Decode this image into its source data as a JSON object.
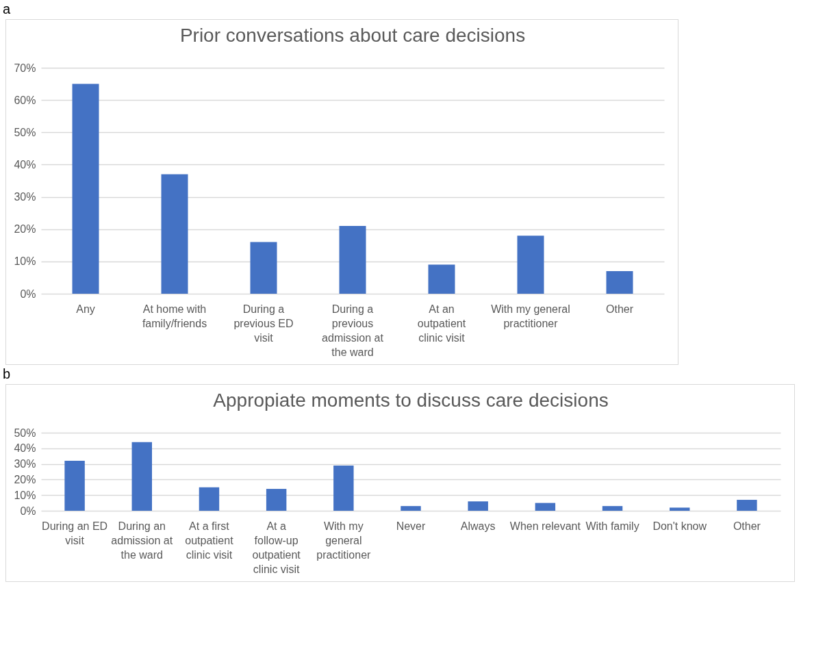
{
  "chart_data": [
    {
      "type": "bar",
      "title": "Prior conversations about care decisions",
      "annotations": [
        "a"
      ],
      "categories": [
        "Any",
        "At home with family/friends",
        "During a previous ED visit",
        "During a previous admission at the ward",
        "At an outpatient clinic visit",
        "With my general practitioner",
        "Other"
      ],
      "values": [
        65,
        37,
        16,
        21,
        9,
        18,
        7
      ],
      "color": "#4472c4",
      "ylim": [
        0,
        70
      ],
      "yticks": [
        {
          "value": 0,
          "label": "0%"
        },
        {
          "value": 10,
          "label": "10%"
        },
        {
          "value": 20,
          "label": "20%"
        },
        {
          "value": 30,
          "label": "30%"
        },
        {
          "value": 40,
          "label": "40%"
        },
        {
          "value": 50,
          "label": "50%"
        },
        {
          "value": 60,
          "label": "60%"
        },
        {
          "value": 70,
          "label": "70%"
        }
      ],
      "grid": "y"
    },
    {
      "type": "bar",
      "title": "Appropiate moments to discuss care decisions",
      "annotations": [
        "b"
      ],
      "categories": [
        "During an ED visit",
        "During an admission at the ward",
        "At a first outpatient clinic visit",
        "At a follow-up outpatient clinic visit",
        "With my general practitioner",
        "Never",
        "Always",
        "When relevant",
        "With family",
        "Don't know",
        "Other"
      ],
      "values": [
        32,
        44,
        15,
        14,
        29,
        3,
        6,
        5,
        3,
        2,
        7
      ],
      "color": "#4472c4",
      "ylim": [
        0,
        50
      ],
      "yticks": [
        {
          "value": 0,
          "label": "0%"
        },
        {
          "value": 10,
          "label": "10%"
        },
        {
          "value": 20,
          "label": "20%"
        },
        {
          "value": 30,
          "label": "30%"
        },
        {
          "value": 40,
          "label": "40%"
        },
        {
          "value": 50,
          "label": "50%"
        }
      ],
      "grid": "y"
    }
  ]
}
